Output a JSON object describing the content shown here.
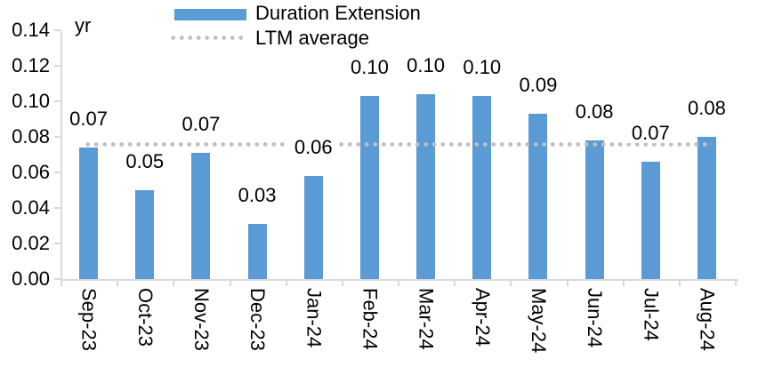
{
  "chart_data": {
    "type": "bar",
    "title": "",
    "unit_label": "yr",
    "categories": [
      "Sep-23",
      "Oct-23",
      "Nov-23",
      "Dec-23",
      "Jan-24",
      "Feb-24",
      "Mar-24",
      "Apr-24",
      "May-24",
      "Jun-24",
      "Jul-24",
      "Aug-24"
    ],
    "series": [
      {
        "name": "Duration Extension",
        "type": "bar",
        "color": "#5B9BD5",
        "values": [
          0.074,
          0.05,
          0.071,
          0.031,
          0.058,
          0.103,
          0.104,
          0.103,
          0.093,
          0.078,
          0.066,
          0.08
        ],
        "data_labels": [
          "0.07",
          "0.05",
          "0.07",
          "0.03",
          "0.06",
          "0.10",
          "0.10",
          "0.10",
          "0.09",
          "0.08",
          "0.07",
          "0.08"
        ]
      },
      {
        "name": "LTM average",
        "type": "dotted-line",
        "color": "#BFBFBF",
        "value": 0.076
      }
    ],
    "xlabel": "",
    "ylabel": "yr",
    "ylim": [
      0,
      0.14
    ],
    "ytick_step": 0.02,
    "yticks": [
      "0.00",
      "0.02",
      "0.04",
      "0.06",
      "0.08",
      "0.10",
      "0.12",
      "0.14"
    ],
    "legend_position": "top",
    "grid": false,
    "axis_color": "#D9D9D9",
    "background_color": "#FFFFFF"
  }
}
